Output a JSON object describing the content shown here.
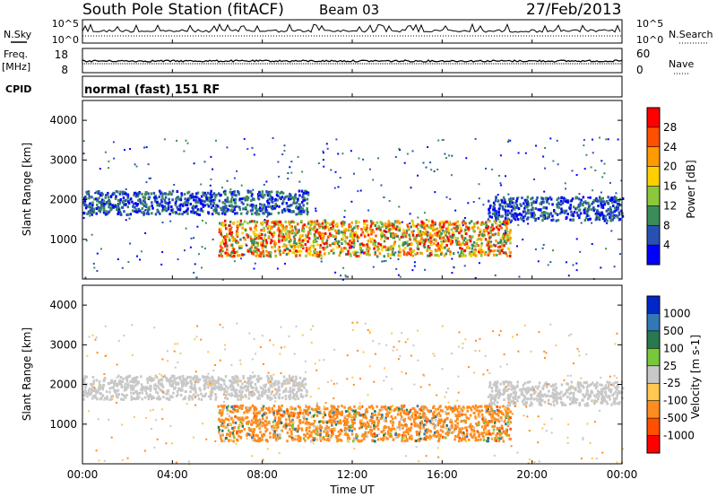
{
  "header": {
    "station": "South Pole Station (fitACF)",
    "beam": "Beam 03",
    "date": "27/Feb/2013"
  },
  "left_labels": {
    "nsky": "N.Sky",
    "freq": "Freq.",
    "freq_unit": "[MHz]",
    "cpid": "CPID"
  },
  "right_labels": {
    "nsearch": "N.Search",
    "nave": "Nave"
  },
  "nsky_panel": {
    "tick_top": "10^5",
    "tick_bottom": "10^0",
    "right_tick_top": "10^5",
    "right_tick_bottom": "10^0"
  },
  "freq_panel": {
    "tick_top": "18",
    "tick_bottom": "8",
    "right_tick_top": "60",
    "right_tick_bottom": "0"
  },
  "cpid_text": "normal (fast) 151 RF",
  "chart_data": [
    {
      "type": "heatmap",
      "name": "power",
      "ylabel": "Slant Range [km]",
      "ylim": [
        0,
        4500
      ],
      "yticks": [
        "1000",
        "2000",
        "3000",
        "4000"
      ],
      "colorbar_label": "Power [dB]",
      "colorbar_ticks": [
        "28",
        "24",
        "20",
        "16",
        "12",
        "8",
        "4"
      ],
      "colorbar_colors": [
        "#ff0000",
        "#ff5000",
        "#ff9a00",
        "#ffd000",
        "#8cc83c",
        "#3c8c5a",
        "#2850b4",
        "#0000ff"
      ],
      "bands": [
        {
          "x": [
            0,
            10
          ],
          "y": [
            1650,
            2250
          ],
          "level": "low"
        },
        {
          "x": [
            18,
            24
          ],
          "y": [
            1500,
            2100
          ],
          "level": "low"
        },
        {
          "x": [
            6,
            19
          ],
          "y": [
            600,
            1500
          ],
          "level": "high"
        }
      ]
    },
    {
      "type": "heatmap",
      "name": "velocity",
      "ylabel": "Slant Range [km]",
      "ylim": [
        0,
        4500
      ],
      "yticks": [
        "1000",
        "2000",
        "3000",
        "4000"
      ],
      "colorbar_label": "Velocity [m s-1]",
      "colorbar_ticks": [
        "1000",
        "500",
        "100",
        "25",
        "-25",
        "-100",
        "-500",
        "-1000"
      ],
      "colorbar_colors": [
        "#0028c8",
        "#3278b4",
        "#287850",
        "#78c83c",
        "#c8c8c8",
        "#ffc850",
        "#ff8c1e",
        "#ff5000",
        "#ff0000"
      ]
    }
  ],
  "x_axis": {
    "label": "Time UT",
    "ticks": [
      "00:00",
      "04:00",
      "08:00",
      "12:00",
      "16:00",
      "20:00",
      "00:00"
    ]
  }
}
